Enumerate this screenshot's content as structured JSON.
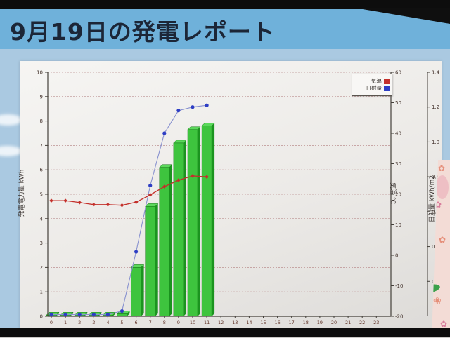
{
  "screen": {
    "title": "9月19日の発電レポート"
  },
  "chart_data": {
    "type": "bar",
    "title": "9月19日の発電レポート",
    "x_ticklabels": [
      "0",
      "1",
      "2",
      "3",
      "4",
      "5",
      "6",
      "7",
      "8",
      "9",
      "10",
      "11",
      "12",
      "13",
      "14",
      "15",
      "16",
      "17",
      "18",
      "19",
      "20",
      "21",
      "22",
      "23"
    ],
    "hours_with_data": [
      0,
      1,
      2,
      3,
      4,
      5,
      6,
      7,
      8,
      9,
      10,
      11
    ],
    "series": [
      {
        "name": "発電電力量",
        "type": "bar",
        "axis": "left",
        "color": "#3ec43e",
        "values": [
          0.05,
          0.05,
          0.05,
          0.05,
          0.05,
          0.1,
          2.0,
          4.5,
          6.1,
          7.1,
          7.65,
          7.8
        ]
      },
      {
        "name": "気温",
        "type": "line",
        "axis": "right",
        "color": "#c4302b",
        "values": [
          17.9,
          17.9,
          17.3,
          16.6,
          16.6,
          16.4,
          17.4,
          19.8,
          22.5,
          24.6,
          26.0,
          25.7
        ]
      },
      {
        "name": "日射量",
        "type": "line",
        "axis": "far_right",
        "color": "#2e3ec4",
        "values": [
          0.01,
          0.01,
          0.01,
          0.01,
          0.01,
          0.03,
          0.37,
          0.75,
          1.05,
          1.18,
          1.2,
          1.21
        ]
      }
    ],
    "axes": {
      "left": {
        "label": "発電電力量 kWh",
        "min": 0,
        "max": 10,
        "tick_step": 1
      },
      "right": {
        "label": "気温 ℃",
        "min": -20,
        "max": 60,
        "tick_step": 10
      },
      "far_right": {
        "label": "日射量 kWh/m2",
        "min": 0,
        "max": 1.4,
        "tick_step": 0.2
      }
    },
    "legend": {
      "position": "top-right",
      "entries": [
        {
          "label": "気温",
          "color": "#c4302b"
        },
        {
          "label": "日射量",
          "color": "#2e3ec4"
        }
      ]
    },
    "grid": true
  }
}
